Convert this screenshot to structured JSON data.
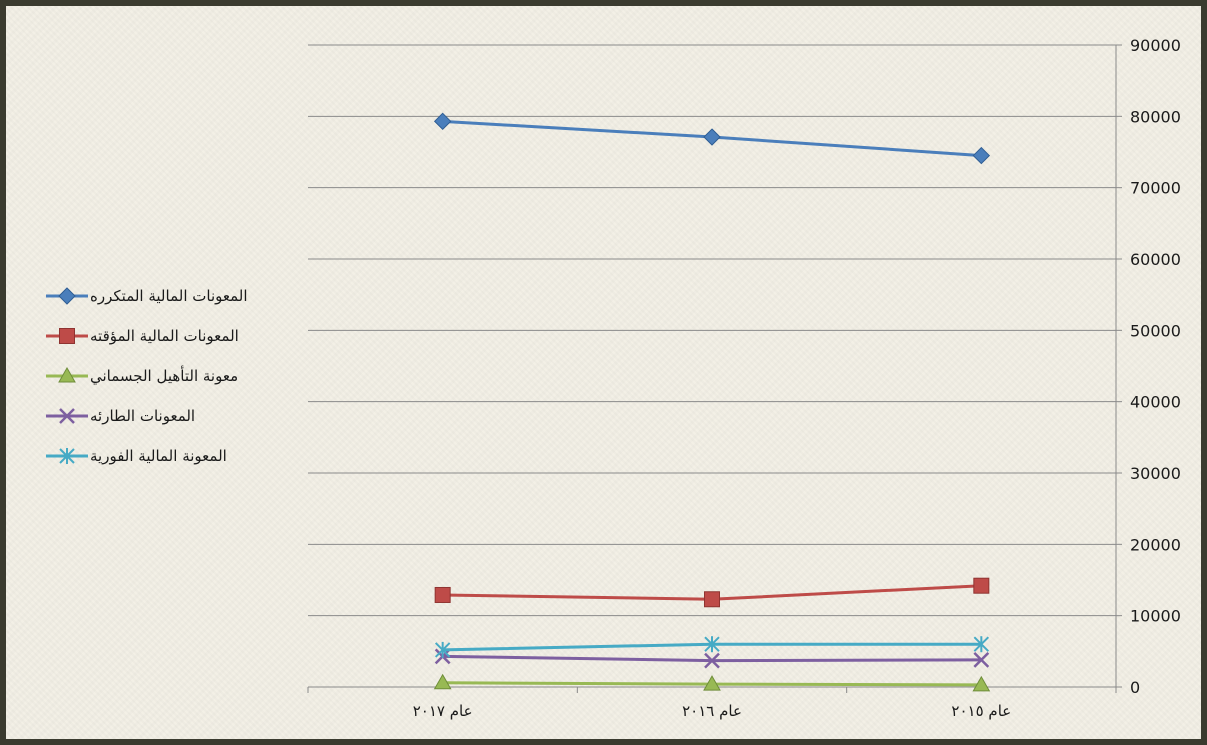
{
  "chart_data": {
    "type": "line",
    "title": "",
    "xlabel": "",
    "ylabel": "",
    "categories": [
      "عام ٢٠١٧",
      "عام ٢٠١٦",
      "عام ٢٠١٥"
    ],
    "ylim": [
      0,
      90000
    ],
    "y_ticks": [
      "0",
      "10000",
      "20000",
      "30000",
      "40000",
      "50000",
      "60000",
      "70000",
      "80000",
      "90000"
    ],
    "y_tick_values": [
      0,
      10000,
      20000,
      30000,
      40000,
      50000,
      60000,
      70000,
      80000,
      90000
    ],
    "y_axis_side": "right",
    "grid": true,
    "legend_position": "left",
    "series": [
      {
        "name": "المعونات المالية المتكرره",
        "color": "#4a7ebb",
        "marker": "diamond",
        "values": [
          79300,
          77100,
          74500
        ]
      },
      {
        "name": "المعونات المالية المؤقته",
        "color": "#be4b48",
        "marker": "square",
        "values": [
          12900,
          12300,
          14200
        ]
      },
      {
        "name": "معونة التأهيل الجسماني",
        "color": "#98b954",
        "marker": "triangle",
        "values": [
          600,
          400,
          300
        ]
      },
      {
        "name": "المعونات الطارئه",
        "color": "#7d5fa0",
        "marker": "x",
        "values": [
          4300,
          3700,
          3800
        ]
      },
      {
        "name": "المعونة المالية الفورية",
        "color": "#46aac5",
        "marker": "star",
        "values": [
          5200,
          6000,
          6000
        ]
      }
    ]
  }
}
